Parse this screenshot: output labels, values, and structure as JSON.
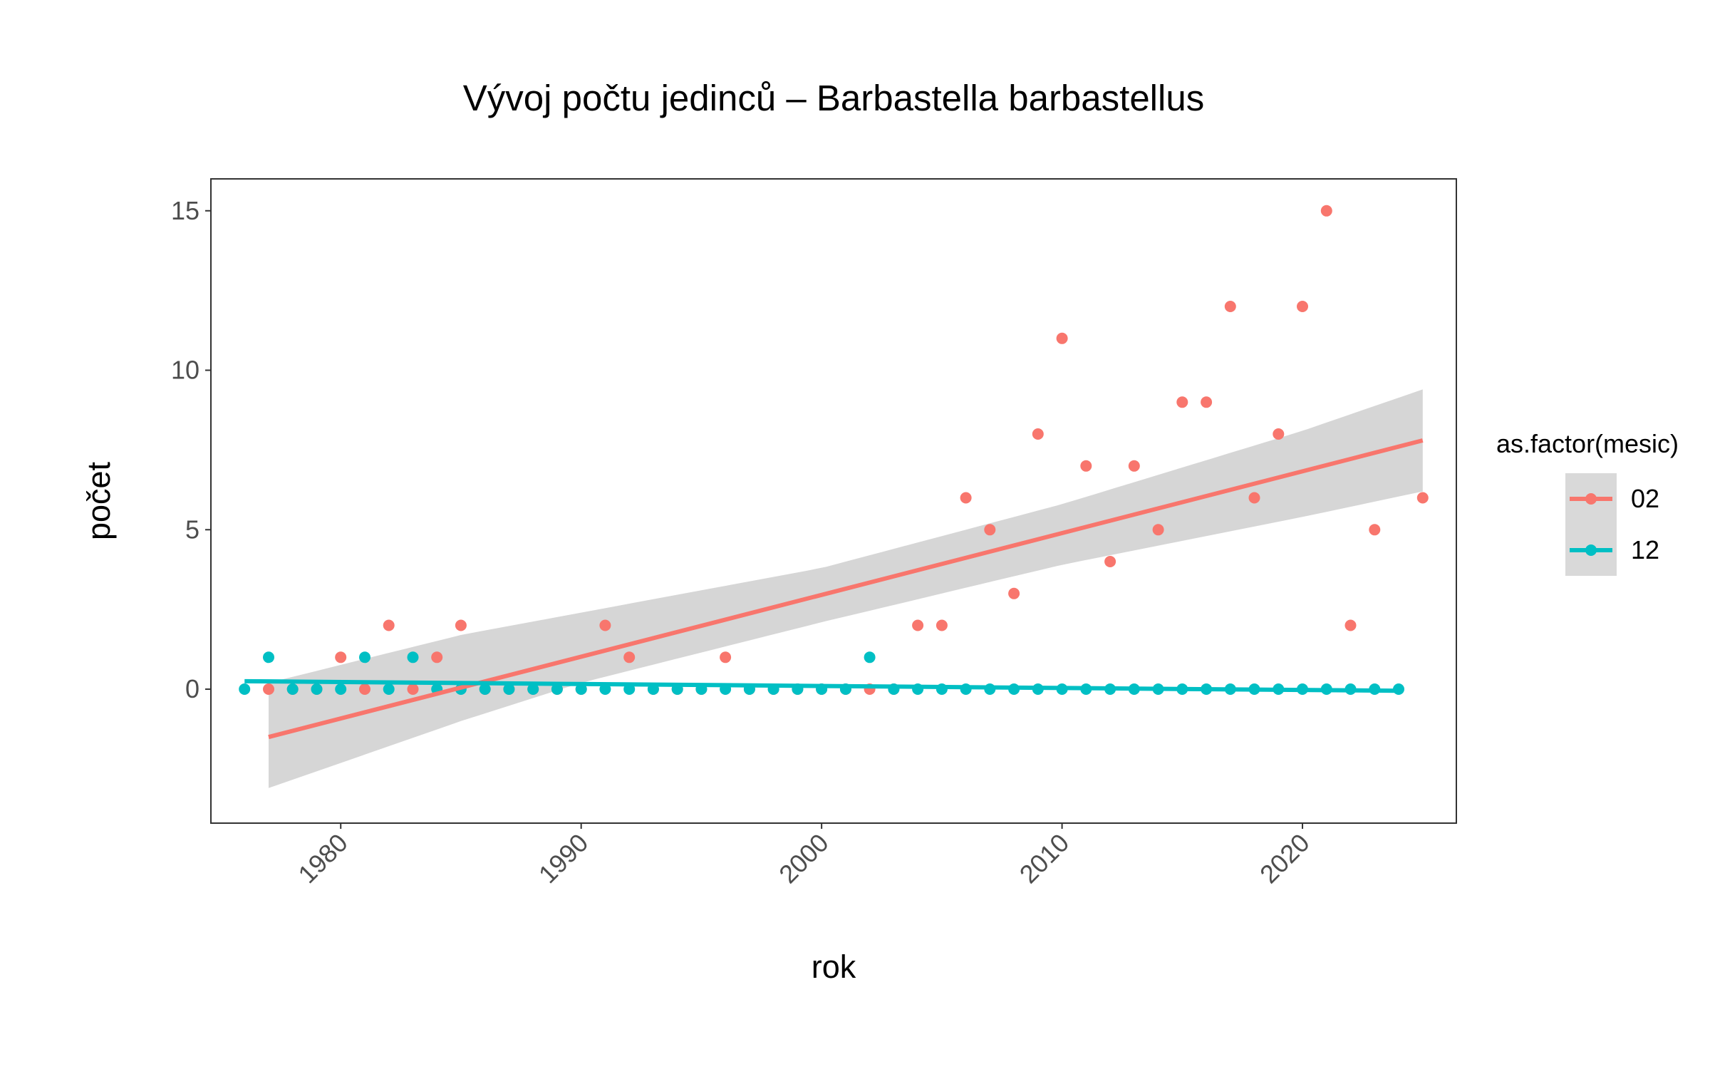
{
  "chart_data": {
    "type": "scatter",
    "title": "Vývoj počtu jedinců – Barbastella barbastellus",
    "xlabel": "rok",
    "ylabel": "počet",
    "xlim": [
      1974.6,
      2026.4
    ],
    "ylim": [
      -4.2,
      16.0
    ],
    "x_ticks": [
      1980,
      1990,
      2000,
      2010,
      2020
    ],
    "x_tick_labels": [
      "1980",
      "1990",
      "2000",
      "2010",
      "2020"
    ],
    "y_ticks": [
      0,
      5,
      10,
      15
    ],
    "y_tick_labels": [
      "0",
      "5",
      "10",
      "15"
    ],
    "grid": false,
    "legend": {
      "title": "as.factor(mesic)",
      "position": "right",
      "entries": [
        {
          "label": "02",
          "color": "#F8766D"
        },
        {
          "label": "12",
          "color": "#00BFC4"
        }
      ]
    },
    "series": [
      {
        "name": "02",
        "color": "#F8766D",
        "points": [
          [
            1977,
            0
          ],
          [
            1978,
            0
          ],
          [
            1979,
            0
          ],
          [
            1980,
            1
          ],
          [
            1981,
            0
          ],
          [
            1982,
            2
          ],
          [
            1983,
            0
          ],
          [
            1984,
            1
          ],
          [
            1985,
            2
          ],
          [
            1986,
            0
          ],
          [
            1987,
            0
          ],
          [
            1988,
            0
          ],
          [
            1989,
            0
          ],
          [
            1990,
            0
          ],
          [
            1991,
            2
          ],
          [
            1992,
            1
          ],
          [
            1993,
            0
          ],
          [
            1994,
            0
          ],
          [
            1995,
            0
          ],
          [
            1996,
            1
          ],
          [
            1997,
            0
          ],
          [
            1998,
            0
          ],
          [
            1999,
            0
          ],
          [
            2000,
            0
          ],
          [
            2001,
            0
          ],
          [
            2002,
            0
          ],
          [
            2003,
            0
          ],
          [
            2004,
            2
          ],
          [
            2005,
            2
          ],
          [
            2006,
            6
          ],
          [
            2007,
            5
          ],
          [
            2008,
            3
          ],
          [
            2009,
            8
          ],
          [
            2010,
            11
          ],
          [
            2011,
            7
          ],
          [
            2012,
            4
          ],
          [
            2013,
            7
          ],
          [
            2014,
            5
          ],
          [
            2015,
            9
          ],
          [
            2016,
            9
          ],
          [
            2017,
            12
          ],
          [
            2018,
            6
          ],
          [
            2019,
            8
          ],
          [
            2020,
            12
          ],
          [
            2021,
            15
          ],
          [
            2022,
            2
          ],
          [
            2023,
            5
          ],
          [
            2025,
            6
          ]
        ],
        "trend": {
          "x": [
            1977,
            2025
          ],
          "y": [
            -1.5,
            7.8
          ]
        },
        "confidence_band": {
          "x": [
            1977,
            1985,
            1990,
            2000,
            2010,
            2020,
            2025
          ],
          "lower": [
            -3.1,
            -1.0,
            0.2,
            2.1,
            3.9,
            5.4,
            6.2
          ],
          "upper": [
            0.2,
            1.7,
            2.4,
            3.8,
            5.8,
            8.1,
            9.4
          ]
        }
      },
      {
        "name": "12",
        "color": "#00BFC4",
        "points": [
          [
            1976,
            0
          ],
          [
            1977,
            1
          ],
          [
            1978,
            0
          ],
          [
            1979,
            0
          ],
          [
            1980,
            0
          ],
          [
            1981,
            1
          ],
          [
            1982,
            0
          ],
          [
            1983,
            1
          ],
          [
            1984,
            0
          ],
          [
            1985,
            0
          ],
          [
            1986,
            0
          ],
          [
            1987,
            0
          ],
          [
            1988,
            0
          ],
          [
            1989,
            0
          ],
          [
            1990,
            0
          ],
          [
            1991,
            0
          ],
          [
            1992,
            0
          ],
          [
            1993,
            0
          ],
          [
            1994,
            0
          ],
          [
            1995,
            0
          ],
          [
            1996,
            0
          ],
          [
            1997,
            0
          ],
          [
            1998,
            0
          ],
          [
            1999,
            0
          ],
          [
            2000,
            0
          ],
          [
            2001,
            0
          ],
          [
            2002,
            1
          ],
          [
            2003,
            0
          ],
          [
            2004,
            0
          ],
          [
            2005,
            0
          ],
          [
            2006,
            0
          ],
          [
            2007,
            0
          ],
          [
            2008,
            0
          ],
          [
            2009,
            0
          ],
          [
            2010,
            0
          ],
          [
            2011,
            0
          ],
          [
            2012,
            0
          ],
          [
            2013,
            0
          ],
          [
            2014,
            0
          ],
          [
            2015,
            0
          ],
          [
            2016,
            0
          ],
          [
            2017,
            0
          ],
          [
            2018,
            0
          ],
          [
            2019,
            0
          ],
          [
            2020,
            0
          ],
          [
            2021,
            0
          ],
          [
            2022,
            0
          ],
          [
            2023,
            0
          ],
          [
            2024,
            0
          ]
        ],
        "trend": {
          "x": [
            1976,
            2024
          ],
          "y": [
            0.25,
            -0.05
          ]
        }
      }
    ]
  }
}
